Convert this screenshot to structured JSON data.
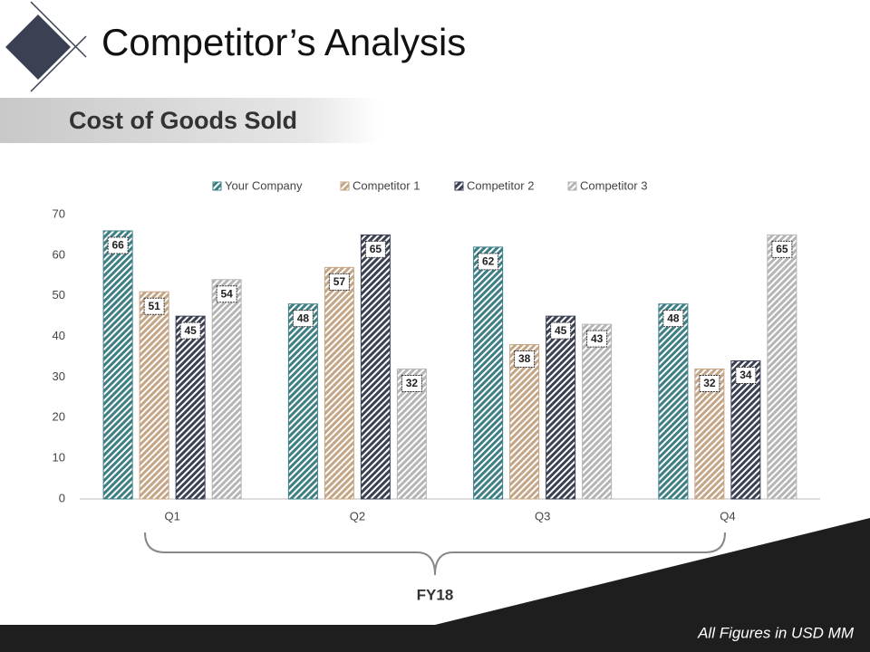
{
  "header": {
    "title": "Competitor’s Analysis",
    "subtitle": "Cost of Goods Sold"
  },
  "chart_data": {
    "type": "bar",
    "categories": [
      "Q1",
      "Q2",
      "Q3",
      "Q4"
    ],
    "series": [
      {
        "name": "Your Company",
        "color": "#3e7f86",
        "values": [
          66,
          48,
          62,
          48
        ]
      },
      {
        "name": "Competitor 1",
        "color": "#c4a585",
        "values": [
          51,
          57,
          38,
          32
        ]
      },
      {
        "name": "Competitor 2",
        "color": "#3b4152",
        "values": [
          45,
          65,
          45,
          34
        ]
      },
      {
        "name": "Competitor 3",
        "color": "#b5b5b5",
        "values": [
          54,
          32,
          43,
          65
        ]
      }
    ],
    "ylim": [
      0,
      70
    ],
    "yticks": [
      0,
      10,
      20,
      30,
      40,
      50,
      60,
      70
    ],
    "xlabel": "FY18",
    "legend": "top",
    "grid": false
  },
  "footer": "All Figures in USD MM"
}
